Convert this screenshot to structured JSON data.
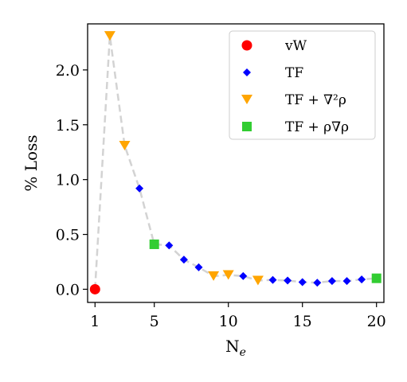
{
  "chart_data": {
    "type": "scatter",
    "xlabel": "N",
    "xlabel_sub": "e",
    "ylabel": "% Loss",
    "xlim": [
      0.5,
      20.5
    ],
    "ylim": [
      -0.12,
      2.42
    ],
    "xticks": [
      1,
      5,
      10,
      15,
      20
    ],
    "xtick_labels": [
      "1",
      "5",
      "10",
      "15",
      "20"
    ],
    "yticks": [
      0.0,
      0.5,
      1.0,
      1.5,
      2.0
    ],
    "ytick_labels": [
      "0.0",
      "0.5",
      "1.0",
      "1.5",
      "2.0"
    ],
    "grid": false,
    "legend_position": "top-right",
    "connector_line": {
      "style": "dashed",
      "color": "#d3d3d3",
      "x": [
        1,
        2,
        3,
        4,
        5,
        6,
        7,
        8,
        9,
        10,
        11,
        12,
        13,
        14,
        15,
        16,
        17,
        18,
        19,
        20
      ],
      "y": [
        0.0,
        2.31,
        1.31,
        0.92,
        0.41,
        0.4,
        0.27,
        0.2,
        0.12,
        0.13,
        0.12,
        0.08,
        0.085,
        0.08,
        0.065,
        0.06,
        0.075,
        0.075,
        0.09,
        0.1
      ]
    },
    "series": [
      {
        "name": "vW",
        "marker": "circle",
        "color": "#ff0000",
        "x": [
          1
        ],
        "y": [
          0.0
        ]
      },
      {
        "name": "TF",
        "marker": "diamond",
        "color": "#0000ff",
        "x": [
          4,
          6,
          7,
          8,
          11,
          13,
          14,
          15,
          16,
          17,
          18,
          19
        ],
        "y": [
          0.92,
          0.4,
          0.27,
          0.2,
          0.12,
          0.085,
          0.08,
          0.065,
          0.06,
          0.075,
          0.075,
          0.09
        ]
      },
      {
        "name": "TF + ∇²ρ",
        "marker": "triangle-down",
        "color": "#ffa500",
        "x": [
          2,
          3,
          9,
          10,
          12
        ],
        "y": [
          2.31,
          1.31,
          0.12,
          0.13,
          0.08
        ]
      },
      {
        "name": "TF + ρ∇ρ",
        "marker": "square",
        "color": "#32cd32",
        "x": [
          5,
          20
        ],
        "y": [
          0.41,
          0.1
        ]
      }
    ]
  }
}
